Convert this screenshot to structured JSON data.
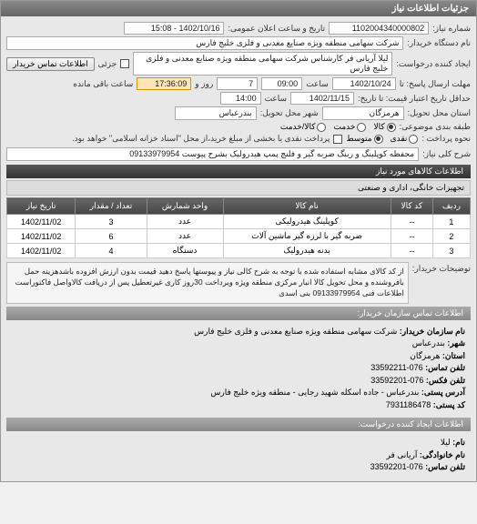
{
  "panel_title": "جزئیات اطلاعات نیاز",
  "header": {
    "req_num_label": "شماره نیاز:",
    "req_num": "1102004340000802",
    "announce_label": "تاریخ و ساعت اعلان عمومی:",
    "announce_val": "1402/10/16 - 15:08",
    "buyer_label": "نام دستگاه خریدار:",
    "buyer": "شرکت سهامی منطقه ویژه صنایع معدنی و فلزی خلیج فارس",
    "requester_label": "ایجاد کننده درخواست:",
    "requester": "لیلا آریانی فر کارشناس شرکت سهامی منطقه ویژه صنایع معدنی و فلزی خلیج فارس",
    "partial_label": "جزئی",
    "contact_btn": "اطلاعات تماس خریدار"
  },
  "dates": {
    "deadline_send_label": "مهلت ارسال پاسخ: تا",
    "deadline_date": "1402/10/24",
    "time_label": "ساعت",
    "deadline_time": "09:00",
    "days_label": "روز و",
    "days": "7",
    "remain_time": "17:36:09",
    "remain_label": "ساعت باقی مانده",
    "validity_label": "حداقل تاریخ اعتبار قیمت: تا تاریخ:",
    "validity_date": "1402/11/15",
    "validity_time": "14:00"
  },
  "location": {
    "province_label": "استان محل تحویل:",
    "province": "هرمزگان",
    "city_label": "شهر محل تحویل:",
    "city": "بندرعباس"
  },
  "packaging": {
    "label": "طبقه بندی موضوعی:",
    "opt_goods": "کالا",
    "opt_service": "خدمت",
    "opt_goods_service": "کالا/خدمت"
  },
  "payment": {
    "label": "نحوه پرداخت :",
    "opt_cash": "نقدی",
    "opt_mid": "متوسط",
    "after_label": "پرداخت نقدی یا بخشی از مبلغ خرید،از محل \"اسناد خزانه اسلامی\" خواهد بود."
  },
  "need": {
    "label": "شرح کلی نیاز:",
    "text": "محفظه کوپلینگ و رینگ ضربه گیر و فلنج پمپ هیدرولیک بشرح پیوست 09133979954"
  },
  "goods_section": "اطلاعات کالاهای مورد نیاز",
  "category": "تجهیزات خانگی، اداری و صنعتی",
  "table": {
    "cols": [
      "ردیف",
      "کد کالا",
      "نام کالا",
      "واحد شمارش",
      "تعداد / مقدار",
      "تاریخ نیاز"
    ],
    "rows": [
      [
        "1",
        "--",
        "کوپلینگ هیدرولیکی",
        "عدد",
        "3",
        "1402/11/02"
      ],
      [
        "2",
        "--",
        "ضربه گیر با لرزه گیر ماشین آلات",
        "عدد",
        "6",
        "1402/11/02"
      ],
      [
        "3",
        "--",
        "بدنه هیدرولیک",
        "دستگاه",
        "4",
        "1402/11/02"
      ]
    ]
  },
  "notes": {
    "label": "توضیحات خریدار:",
    "text": "از کد کالای مشابه استفاده شده با توجه به شرح کالی نیاز و پیوستها پاسخ دهید قیمت بدون ارزش افزوده باشدهزینه حمل بافروشنده و محل تحویل کالا انبار مرکزی منطقه ویژه ویرداخت 30روز کاری غیرتعطیل پس از دریافت کالاواصل فاکتوراست اطلاعات فنی 09133979954 بنی اسدی"
  },
  "contact_header": "اطلاعات تماس سازمان خریدار:",
  "contact": {
    "org_label": "نام سازمان خریدار:",
    "org": "شرکت سهامی منطقه ویژه صنایع معدنی و فلزی خلیج فارس",
    "city_label": "شهر:",
    "city": "بندرعباس",
    "province_label": "استان:",
    "province": "هرمزگان",
    "phone_label": "تلفن تماس:",
    "phone": "076-33592211",
    "fax_label": "تلفن فکس:",
    "fax": "076-33592201",
    "address_label": "آدرس پستی:",
    "address": "بندرعباس - جاده اسکله شهید رجایی - منطقه ویژه خلیج فارس",
    "postcode_label": "کد پستی:",
    "postcode": "7931186478"
  },
  "creator_header": "اطلاعات ایجاد کننده درخواست:",
  "creator": {
    "name_label": "نام:",
    "name": "لیلا",
    "family_label": "نام خانوادگی:",
    "family": "آریانی فر",
    "phone_label": "تلفن تماس:",
    "phone": "076-33592201"
  }
}
